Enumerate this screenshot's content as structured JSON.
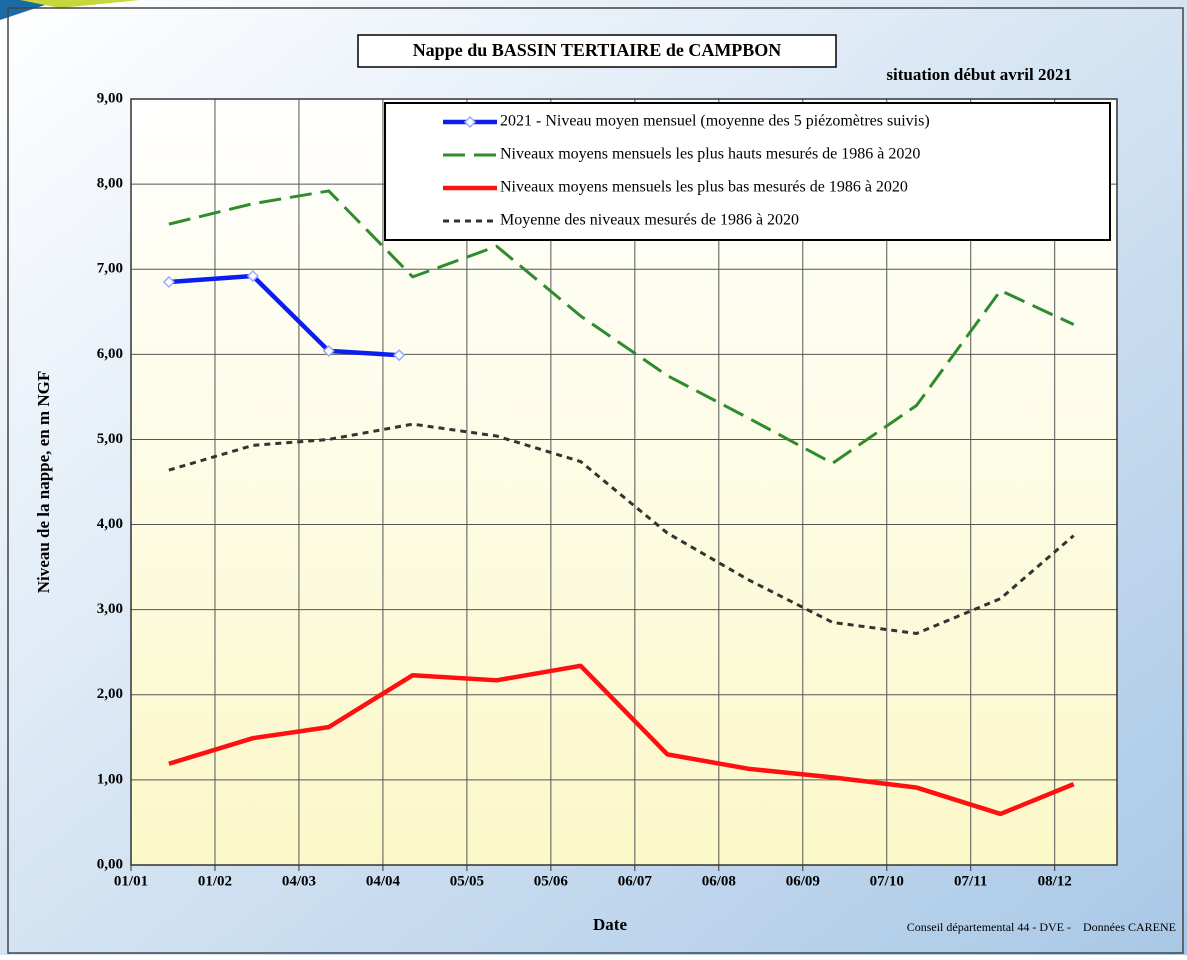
{
  "chart_data": {
    "type": "line",
    "title": "Nappe du BASSIN TERTIAIRE de CAMPBON",
    "subtitle": "situation début avril 2021",
    "y_label": "Niveau de la nappe, en m NGF",
    "x_label": "Date",
    "source": "Conseil départemental 44 - DVE -    Données CARENE",
    "x": [
      15,
      46,
      74,
      105,
      136,
      167,
      199,
      229,
      260,
      291,
      322,
      349
    ],
    "series": [
      {
        "name": "2021 - Niveau moyen mensuel (moyenne des 5 piézomètres suivis)",
        "color": "#0a1ef0",
        "line_style": "solid",
        "markers": true,
        "x": [
          15,
          46,
          74,
          100
        ],
        "values": [
          6.85,
          6.92,
          6.04,
          5.99
        ]
      },
      {
        "name": "Niveaux moyens mensuels les plus hauts mesurés de 1986 à 2020",
        "color": "#2e8b2e",
        "line_style": "dashed",
        "markers": false,
        "values": [
          7.53,
          7.77,
          7.92,
          6.91,
          7.27,
          6.45,
          5.75,
          5.25,
          4.72,
          5.4,
          6.75,
          6.35
        ]
      },
      {
        "name": "Niveaux moyens mensuels les plus bas mesurés de 1986 à 2020",
        "color": "#ff1010",
        "line_style": "solid",
        "markers": false,
        "values": [
          1.19,
          1.49,
          1.62,
          2.23,
          2.17,
          2.34,
          1.3,
          1.13,
          1.03,
          0.91,
          0.6,
          0.95
        ]
      },
      {
        "name": "Moyenne des niveaux mesurés de 1986 à 2020",
        "color": "#333333",
        "line_style": "dotted",
        "markers": false,
        "values": [
          4.64,
          4.93,
          5.0,
          5.18,
          5.04,
          4.74,
          3.9,
          3.35,
          2.85,
          2.72,
          3.13,
          3.87
        ]
      }
    ],
    "xlim": [
      1,
      365
    ],
    "xticks": [
      {
        "value": 1,
        "label": "01/01"
      },
      {
        "value": 32,
        "label": "01/02"
      },
      {
        "value": 63,
        "label": "04/03"
      },
      {
        "value": 94,
        "label": "04/04"
      },
      {
        "value": 125,
        "label": "05/05"
      },
      {
        "value": 156,
        "label": "05/06"
      },
      {
        "value": 187,
        "label": "06/07"
      },
      {
        "value": 218,
        "label": "06/08"
      },
      {
        "value": 249,
        "label": "06/09"
      },
      {
        "value": 280,
        "label": "07/10"
      },
      {
        "value": 311,
        "label": "07/11"
      },
      {
        "value": 342,
        "label": "08/12"
      }
    ],
    "ylim": [
      0,
      9
    ],
    "yticks": [
      {
        "value": 0,
        "label": "0,00"
      },
      {
        "value": 1,
        "label": "1,00"
      },
      {
        "value": 2,
        "label": "2,00"
      },
      {
        "value": 3,
        "label": "3,00"
      },
      {
        "value": 4,
        "label": "4,00"
      },
      {
        "value": 5,
        "label": "5,00"
      },
      {
        "value": 6,
        "label": "6,00"
      },
      {
        "value": 7,
        "label": "7,00"
      },
      {
        "value": 8,
        "label": "8,00"
      },
      {
        "value": 9,
        "label": "9,00"
      }
    ],
    "grid": true
  }
}
